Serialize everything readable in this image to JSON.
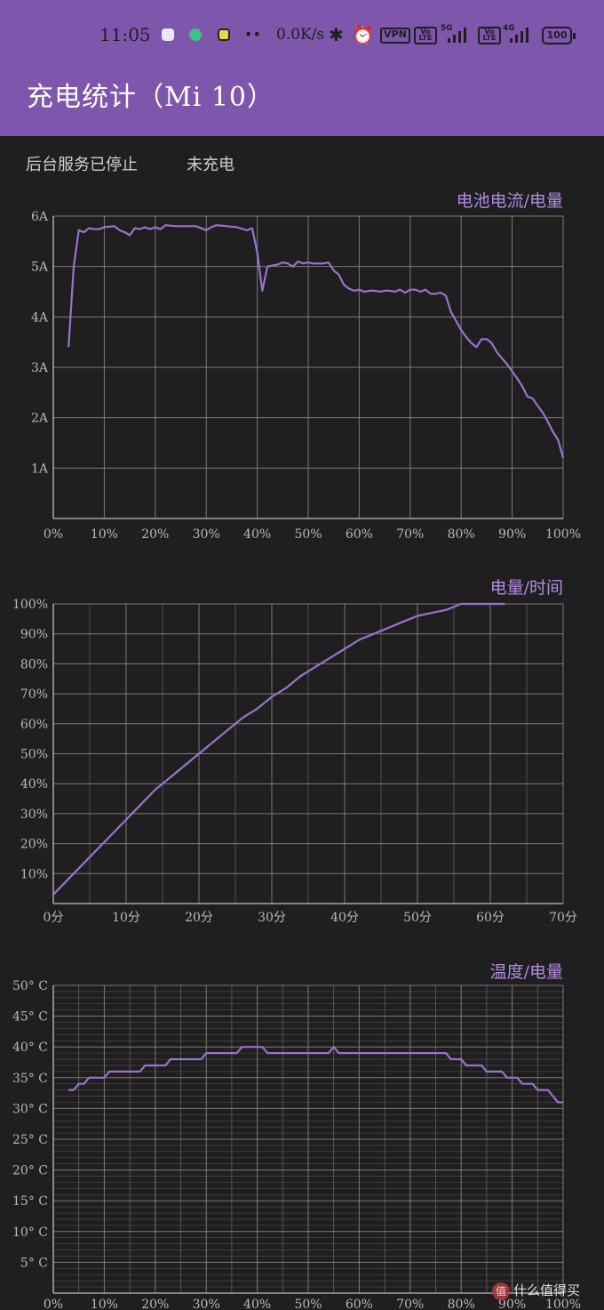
{
  "status_bar": {
    "time": "11:05",
    "network_speed": "0.0K/s",
    "vpn_label": "VPN",
    "volte_label": "Vo LTE",
    "sim1_type": "5G",
    "sim2_type": "4G",
    "battery_level": "100",
    "icons": [
      "message-icon",
      "wechat-icon",
      "app-icon",
      "more-dots-icon",
      "bluetooth-icon",
      "alarm-icon",
      "vpn-icon",
      "volte-icon",
      "signal-icon",
      "battery-icon"
    ]
  },
  "header": {
    "title": "充电统计（Mi 10）",
    "background": "#7e56ab"
  },
  "status": {
    "service": "后台服务已停止",
    "charging": "未充电"
  },
  "charts": {
    "line_color": "#9b72cf",
    "grid_color": "#8a8a8a",
    "title_color": "#b38be0"
  },
  "chart_data": [
    {
      "type": "line",
      "title": "电池电流/电量",
      "xlabel": "",
      "ylabel": "",
      "xlim": [
        0,
        100
      ],
      "ylim": [
        0,
        6
      ],
      "x_ticks": [
        "0%",
        "10%",
        "20%",
        "30%",
        "40%",
        "50%",
        "60%",
        "70%",
        "80%",
        "90%",
        "100%"
      ],
      "y_ticks": [
        "1A",
        "2A",
        "3A",
        "4A",
        "5A",
        "6A"
      ],
      "series": [
        {
          "x": [
            3,
            4,
            5,
            6,
            7,
            8,
            9,
            10,
            12,
            13,
            14,
            15,
            16,
            17,
            18,
            19,
            20,
            21,
            22,
            24,
            26,
            28,
            30,
            31,
            32,
            34,
            36,
            38,
            39,
            40,
            41,
            42,
            44,
            45,
            46,
            47,
            48,
            49,
            50,
            51,
            52,
            53,
            54,
            55,
            56,
            57,
            58,
            59,
            60,
            61,
            62,
            63,
            64,
            65,
            66,
            67,
            68,
            69,
            70,
            71,
            72,
            73,
            74,
            75,
            76,
            77,
            78,
            79,
            80,
            81,
            82,
            83,
            84,
            85,
            86,
            87,
            88,
            89,
            90,
            91,
            92,
            93,
            94,
            95,
            96,
            97,
            98,
            99,
            100
          ],
          "y": [
            3.4,
            5.0,
            5.72,
            5.68,
            5.76,
            5.74,
            5.74,
            5.78,
            5.8,
            5.72,
            5.68,
            5.62,
            5.76,
            5.74,
            5.78,
            5.74,
            5.78,
            5.74,
            5.82,
            5.8,
            5.8,
            5.8,
            5.72,
            5.78,
            5.82,
            5.8,
            5.78,
            5.72,
            5.76,
            5.28,
            4.52,
            5.0,
            5.04,
            5.08,
            5.06,
            5.0,
            5.1,
            5.06,
            5.08,
            5.06,
            5.06,
            5.06,
            5.08,
            4.92,
            4.84,
            4.64,
            4.56,
            4.52,
            4.54,
            4.5,
            4.52,
            4.52,
            4.5,
            4.52,
            4.52,
            4.5,
            4.54,
            4.48,
            4.54,
            4.54,
            4.5,
            4.54,
            4.46,
            4.46,
            4.48,
            4.42,
            4.1,
            3.92,
            3.74,
            3.6,
            3.48,
            3.4,
            3.56,
            3.56,
            3.48,
            3.3,
            3.18,
            3.06,
            2.92,
            2.78,
            2.62,
            2.42,
            2.38,
            2.24,
            2.1,
            1.92,
            1.72,
            1.56,
            1.2
          ]
        }
      ]
    },
    {
      "type": "line",
      "title": "电量/时间",
      "xlabel": "",
      "ylabel": "",
      "xlim": [
        0,
        70
      ],
      "ylim": [
        0,
        100
      ],
      "x_ticks": [
        "0分",
        "10分",
        "20分",
        "30分",
        "40分",
        "50分",
        "60分",
        "70分"
      ],
      "y_ticks": [
        "10%",
        "20%",
        "30%",
        "40%",
        "50%",
        "60%",
        "70%",
        "80%",
        "90%",
        "100%"
      ],
      "series": [
        {
          "x": [
            0,
            2,
            4,
            6,
            8,
            10,
            12,
            14,
            16,
            18,
            20,
            22,
            24,
            26,
            28,
            30,
            32,
            34,
            36,
            38,
            40,
            42,
            44,
            46,
            48,
            50,
            52,
            54,
            56,
            57,
            58,
            60,
            62
          ],
          "y": [
            3,
            8,
            13,
            18,
            23,
            28,
            33,
            38,
            42,
            46,
            50,
            54,
            58,
            62,
            65,
            69,
            72,
            76,
            79,
            82,
            85,
            88,
            90,
            92,
            94,
            96,
            97,
            98,
            100,
            100,
            100,
            100,
            100
          ]
        }
      ]
    },
    {
      "type": "line",
      "title": "温度/电量",
      "xlabel": "",
      "ylabel": "",
      "xlim": [
        0,
        100
      ],
      "ylim": [
        0,
        50
      ],
      "x_ticks": [
        "0%",
        "10%",
        "20%",
        "30%",
        "40%",
        "50%",
        "60%",
        "70%",
        "80%",
        "90%",
        "100%"
      ],
      "y_ticks": [
        "5° C",
        "10° C",
        "15° C",
        "20° C",
        "25° C",
        "30° C",
        "35° C",
        "40° C",
        "45° C",
        "50° C"
      ],
      "series": [
        {
          "x": [
            3,
            4,
            5,
            6,
            7,
            10,
            11,
            13,
            17,
            18,
            22,
            23,
            29,
            30,
            36,
            37,
            41,
            42,
            54,
            55,
            56,
            77,
            78,
            80,
            81,
            84,
            85,
            88,
            89,
            91,
            92,
            94,
            95,
            97,
            98,
            99,
            100
          ],
          "y": [
            33,
            33,
            34,
            34,
            35,
            35,
            36,
            36,
            36,
            37,
            37,
            38,
            38,
            39,
            39,
            40,
            40,
            39,
            39,
            40,
            39,
            39,
            38,
            38,
            37,
            37,
            36,
            36,
            35,
            35,
            34,
            34,
            33,
            33,
            32,
            31,
            31
          ]
        }
      ]
    }
  ],
  "watermark": {
    "text": "什么值得买",
    "logo": "值"
  }
}
